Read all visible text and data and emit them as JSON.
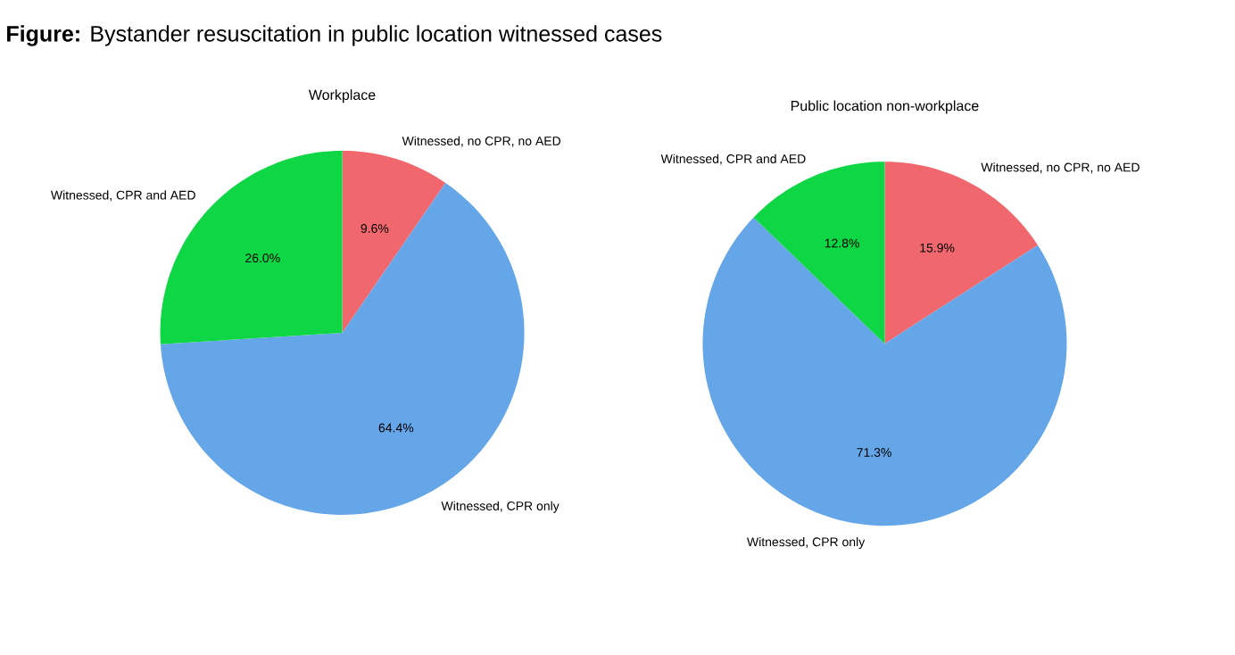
{
  "chart_data": [
    {
      "type": "other",
      "title": "**Figure:** Bystander resuscitation in public location witnessed cases"
    },
    {
      "type": "pie",
      "title": "Workplace",
      "categories": [
        "Witnessed, no CPR, no AED",
        "Witnessed, CPR only",
        "Witnessed, CPR and AED"
      ],
      "values": [
        9.6,
        64.4,
        26.0
      ],
      "colors": [
        "#f0686e",
        "#65a6e8",
        "#0ed645"
      ],
      "value_labels": [
        "9.6%",
        "64.4%",
        "26.0%"
      ]
    },
    {
      "type": "pie",
      "title": "Public location non-workplace",
      "categories": [
        "Witnessed, no CPR, no AED",
        "Witnessed, CPR only",
        "Witnessed, CPR and AED"
      ],
      "values": [
        15.9,
        71.3,
        12.8
      ],
      "colors": [
        "#f0686e",
        "#65a6e8",
        "#0ed645"
      ],
      "value_labels": [
        "15.9%",
        "71.3%",
        "12.8%"
      ]
    }
  ]
}
